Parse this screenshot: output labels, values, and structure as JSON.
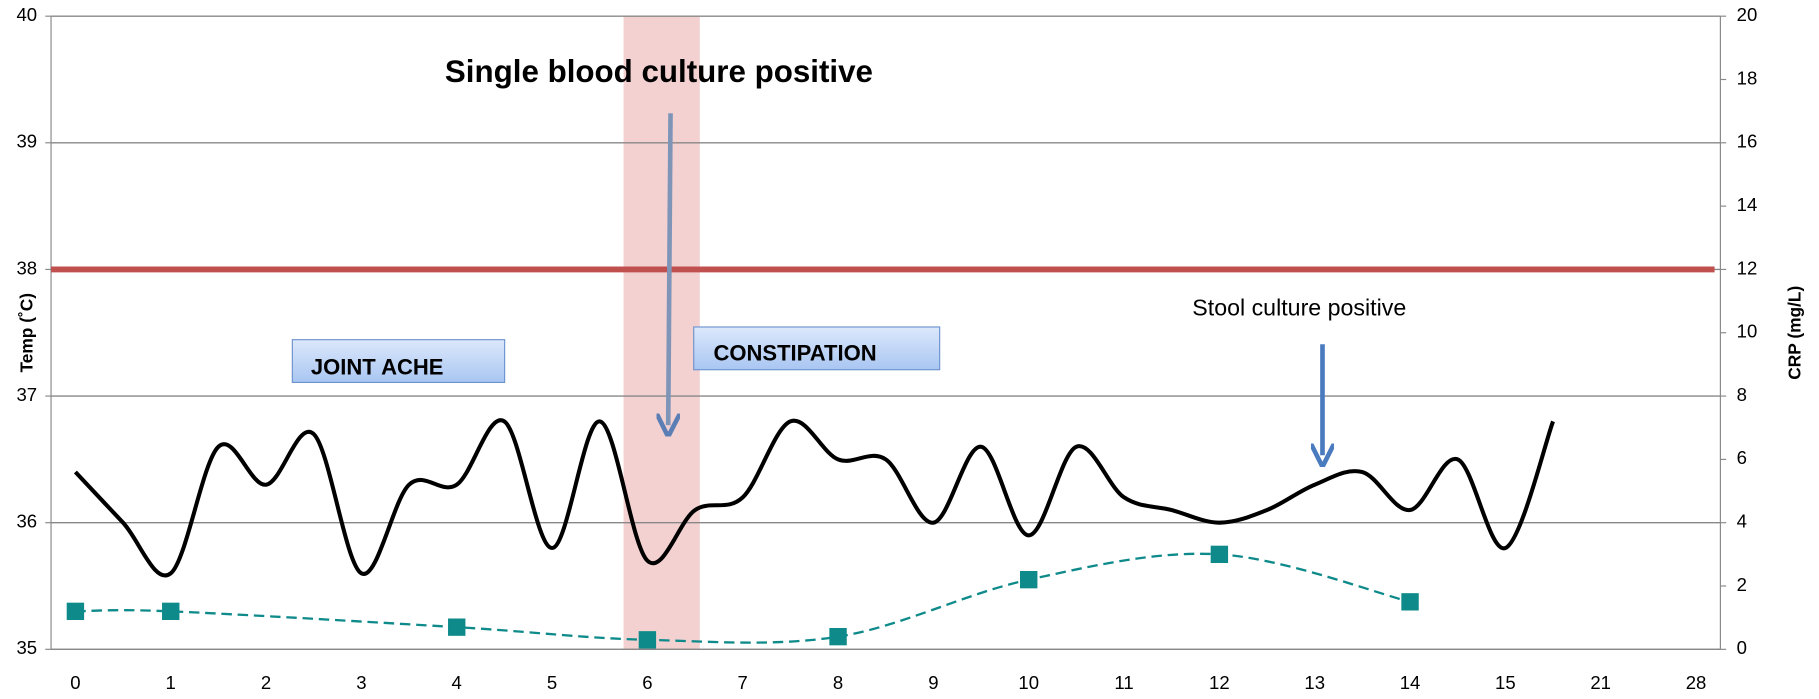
{
  "chart_data": {
    "type": "line",
    "y_label": "Temp (˚C)",
    "y2_label": "CRP (mg/L)",
    "categories": [
      "0",
      "1",
      "2",
      "3",
      "4",
      "5",
      "6",
      "7",
      "8",
      "9",
      "10",
      "11",
      "12",
      "13",
      "14",
      "15",
      "21",
      "28"
    ],
    "ylim": [
      35,
      40
    ],
    "yticks": [
      35,
      36,
      37,
      38,
      39,
      40
    ],
    "y2lim": [
      0,
      20
    ],
    "y2ticks": [
      0,
      2,
      4,
      6,
      8,
      10,
      12,
      14,
      16,
      18,
      20
    ],
    "grid": true,
    "threshold": {
      "value": 38,
      "color": "#c0504d"
    },
    "shade": {
      "x": [
        5.75,
        6.55
      ],
      "color": "#f2c9c9"
    },
    "series": [
      {
        "color": "#000000",
        "x": [
          0,
          0.5,
          1,
          1.5,
          2,
          2.5,
          3,
          3.5,
          4,
          4.5,
          5,
          5.5,
          6,
          6.5,
          7,
          7.5,
          8,
          8.5,
          9,
          9.5,
          10,
          10.5,
          11,
          11.5,
          12,
          12.5,
          13,
          13.5,
          14,
          14.5,
          15,
          15.5
        ],
        "values": [
          36.4,
          36.0,
          35.6,
          36.6,
          36.3,
          36.7,
          35.6,
          36.3,
          36.3,
          36.8,
          35.8,
          36.8,
          35.7,
          36.1,
          36.2,
          36.8,
          36.5,
          36.5,
          36.0,
          36.6,
          35.9,
          36.6,
          36.2,
          36.1,
          36.0,
          36.1,
          36.3,
          36.4,
          36.1,
          36.5,
          35.8,
          36.8
        ]
      },
      {
        "color": "#0e8a8a",
        "axis": "y2",
        "x": [
          0,
          1,
          4,
          6,
          8,
          10,
          12,
          14
        ],
        "values": [
          1.2,
          1.2,
          0.7,
          0.3,
          0.4,
          2.2,
          3.0,
          1.5
        ]
      }
    ],
    "annotations": {
      "blood": "Single blood culture positive",
      "stool": "Stool culture positive",
      "joint": "JOINT ACHE",
      "constipation": "CONSTIPATION"
    }
  }
}
